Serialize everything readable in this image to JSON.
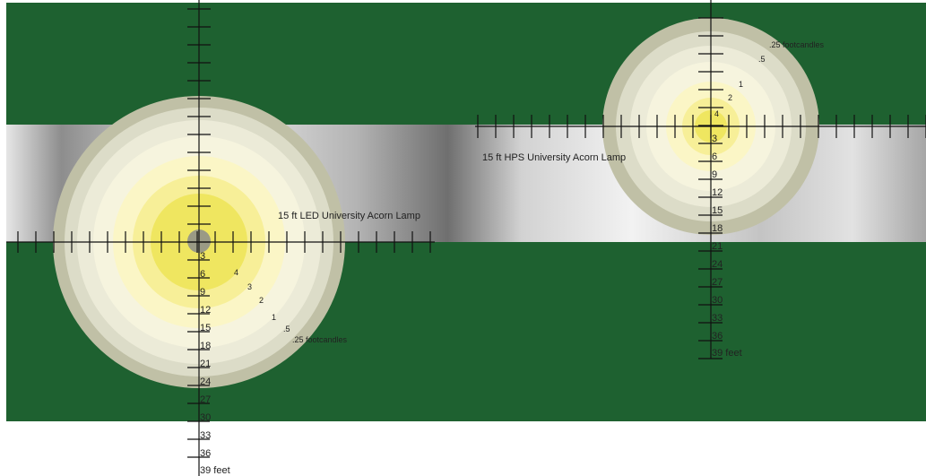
{
  "colors": {
    "grass": "#1e6130",
    "ring_outer": "#c0c0a6",
    "ring_2": "#dcdcc8",
    "ring_3": "#ecebd8",
    "ring_4": "#f6f4de",
    "ring_5": "#fbf6c6",
    "ring_6": "#f7ef98",
    "ring_7": "#efe660",
    "hub": "#9a9a85",
    "axis": "#111111"
  },
  "led": {
    "label": "15 ft LED University Acorn Lamp",
    "footcandles": [
      "4",
      "3",
      "2",
      "1",
      ".5",
      ".25 footcandles"
    ],
    "distances": [
      "3",
      "6",
      "9",
      "12",
      "15",
      "18",
      "21",
      "24",
      "27",
      "30",
      "33",
      "36",
      "39 feet"
    ]
  },
  "hps": {
    "label": "15 ft HPS University Acorn Lamp",
    "footcandles": [
      ".25 footcandles",
      ".5",
      "1",
      "2",
      "4"
    ],
    "distances": [
      "3",
      "6",
      "9",
      "12",
      "15",
      "18",
      "21",
      "24",
      "27",
      "30",
      "33",
      "36",
      "39 feet"
    ]
  }
}
